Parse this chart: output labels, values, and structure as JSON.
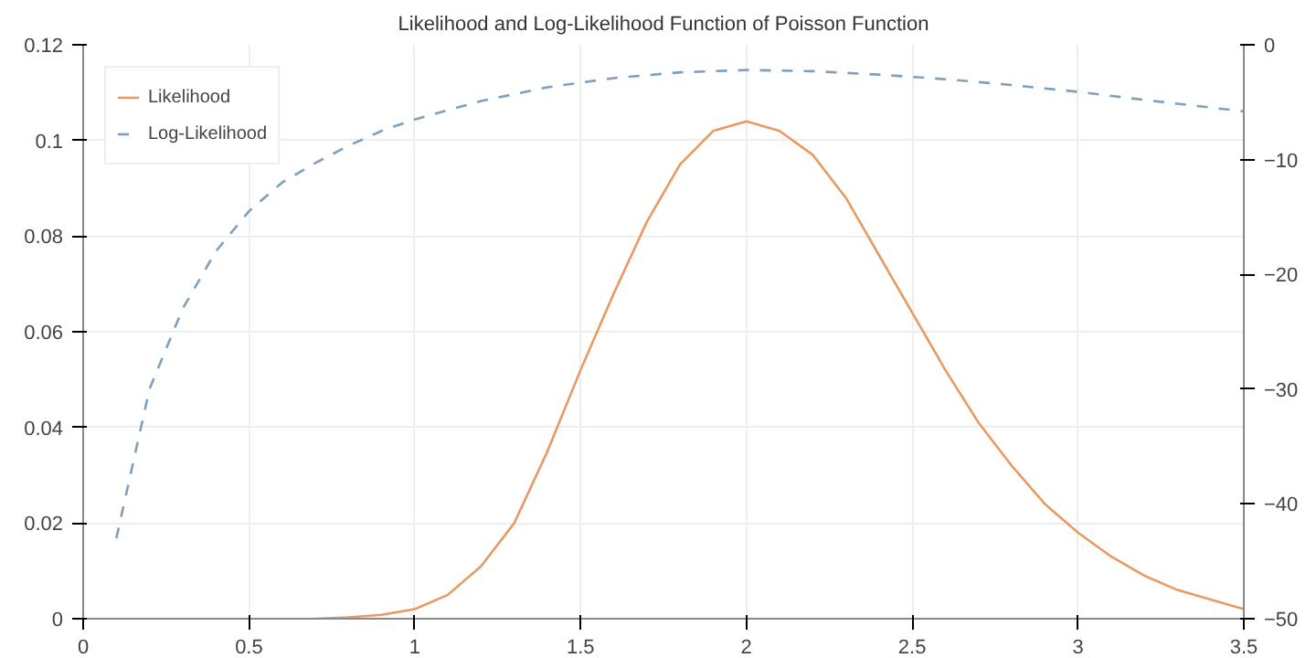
{
  "chart_data": {
    "type": "line",
    "title": "Likelihood and Log-Likelihood Function of Poisson Function",
    "xlim": [
      0,
      3.5
    ],
    "xticks": [
      0,
      0.5,
      1,
      1.5,
      2,
      2.5,
      3,
      3.5
    ],
    "ylim": [
      0,
      0.12
    ],
    "yticks": [
      0,
      0.02,
      0.04,
      0.06,
      0.08,
      0.1,
      0.12
    ],
    "y2lim": [
      -50,
      0
    ],
    "y2ticks": [
      -50,
      -40,
      -30,
      -20,
      -10,
      0
    ],
    "grid": true,
    "legend": "top left",
    "marker": "none",
    "series": [
      {
        "name": "Likelihood",
        "color": "#e89a63",
        "line_style": "solid",
        "x": [
          0.7,
          0.8,
          0.9,
          1.0,
          1.1,
          1.2,
          1.3,
          1.4,
          1.5,
          1.6,
          1.7,
          1.8,
          1.9,
          2.0,
          2.1,
          2.2,
          2.3,
          2.4,
          2.5,
          2.6,
          2.7,
          2.8,
          2.9,
          3.0,
          3.1,
          3.2,
          3.3,
          3.4,
          3.5
        ],
        "values": [
          0,
          0.0003,
          0.0008,
          0.002,
          0.005,
          0.011,
          0.02,
          0.035,
          0.052,
          0.068,
          0.083,
          0.095,
          0.102,
          0.104,
          0.102,
          0.097,
          0.088,
          0.076,
          0.064,
          0.052,
          0.041,
          0.032,
          0.024,
          0.018,
          0.013,
          0.009,
          0.006,
          0.004,
          0.002
        ]
      },
      {
        "name": "Log-Likelihood",
        "color": "#7f9fbf",
        "line_style": "dashed",
        "axis": "y2",
        "x": [
          0.1,
          0.2,
          0.3,
          0.4,
          0.5,
          0.6,
          0.7,
          0.8,
          0.9,
          1.0,
          1.2,
          1.4,
          1.6,
          1.8,
          2.0,
          2.2,
          2.4,
          2.6,
          2.8,
          3.0,
          3.2,
          3.5
        ],
        "values": [
          -43,
          -30,
          -23,
          -18,
          -14.5,
          -12,
          -10.3,
          -8.8,
          -7.5,
          -6.5,
          -4.9,
          -3.7,
          -2.9,
          -2.4,
          -2.2,
          -2.3,
          -2.6,
          -3.0,
          -3.5,
          -4.1,
          -4.8,
          -5.8
        ]
      }
    ]
  }
}
